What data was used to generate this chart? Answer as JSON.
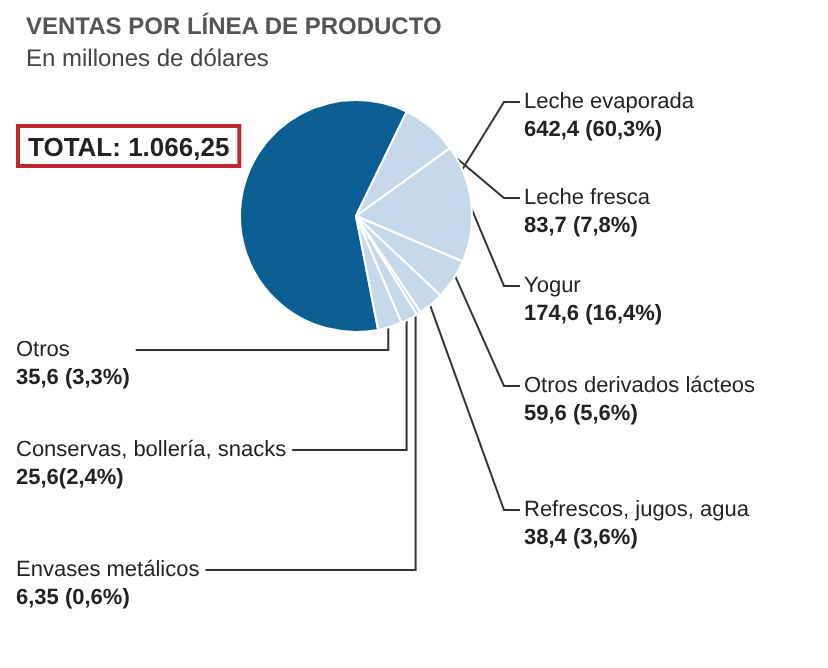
{
  "chart_data": {
    "type": "pie",
    "title": "VENTAS POR LÍNEA DE PRODUCTO",
    "subtitle": "En millones de dólares",
    "annotations": [
      "TOTAL: 1.066,25"
    ],
    "categories": [
      "Leche evaporada",
      "Leche fresca",
      "Yogur",
      "Otros derivados lácteos",
      "Refrescos, jugos, agua",
      "Envases metálicos",
      "Conservas, bollería, snacks",
      "Otros"
    ],
    "values": [
      642.4,
      83.7,
      174.6,
      59.6,
      38.4,
      6.35,
      25.6,
      35.6
    ],
    "value_labels": [
      "642,4 (60,3%)",
      "83,7 (7,8%)",
      "174,6 (16,4%)",
      "59,6 (5,6%)",
      "38,4 (3,6%)",
      "6,35 (0,6%)",
      "25,6(2,4%)",
      "35,6 (3,3%)"
    ],
    "colors": [
      "#0b5e94",
      "#c6d9ea",
      "#c6d9ea",
      "#c6d9ea",
      "#c6d9ea",
      "#c6d9ea",
      "#c6d9ea",
      "#c6d9ea"
    ],
    "legend": false
  }
}
